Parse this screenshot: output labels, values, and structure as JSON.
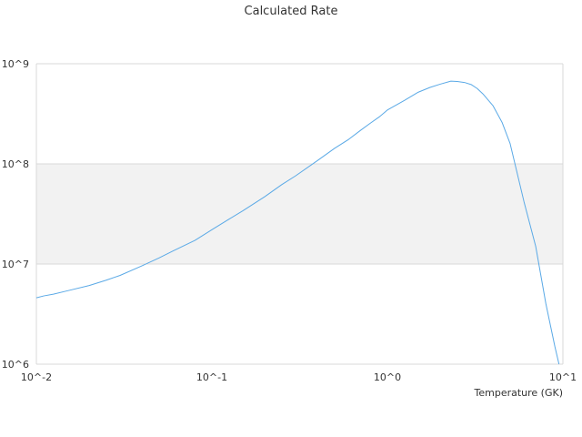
{
  "chart_data": {
    "type": "line",
    "title": "Calculated Rate",
    "xlabel": "Temperature (GK)",
    "ylabel": "",
    "x_scale": "log",
    "y_scale": "log",
    "xlim": [
      0.01,
      10
    ],
    "ylim": [
      1000000,
      1000000000
    ],
    "x_tick_labels": [
      "10^-2",
      "10^-1",
      "10^0",
      "10^1"
    ],
    "y_tick_labels": [
      "10^6",
      "10^7",
      "10^8",
      "10^9"
    ],
    "grid": "horizontal",
    "band_color": "#f2f2f2",
    "series": [
      {
        "color": "#5aa9e6",
        "x": [
          0.01,
          0.011,
          0.0125,
          0.015,
          0.02,
          0.025,
          0.03,
          0.04,
          0.05,
          0.06,
          0.08,
          0.1,
          0.125,
          0.15,
          0.2,
          0.25,
          0.3,
          0.4,
          0.5,
          0.6,
          0.7,
          0.8,
          0.9,
          1.0,
          1.25,
          1.5,
          1.75,
          2.0,
          2.3,
          2.5,
          2.75,
          3.0,
          3.25,
          3.5,
          4.0,
          4.5,
          5.0,
          6.0,
          7.0,
          8.0,
          9.0,
          9.5
        ],
        "y": [
          4600000,
          4800000,
          5000000,
          5400000,
          6100000,
          6900000,
          7700000,
          9600000,
          11500000,
          13500000,
          17200000,
          22000000,
          28000000,
          34000000,
          47000000,
          62000000,
          76000000,
          108000000,
          143000000,
          175000000,
          215000000,
          255000000,
          295000000,
          345000000,
          430000000,
          520000000,
          580000000,
          625000000,
          670000000,
          665000000,
          650000000,
          620000000,
          565000000,
          500000000,
          380000000,
          260000000,
          160000000,
          42000000,
          15000000,
          4000000,
          1500000,
          1000000
        ]
      }
    ]
  }
}
